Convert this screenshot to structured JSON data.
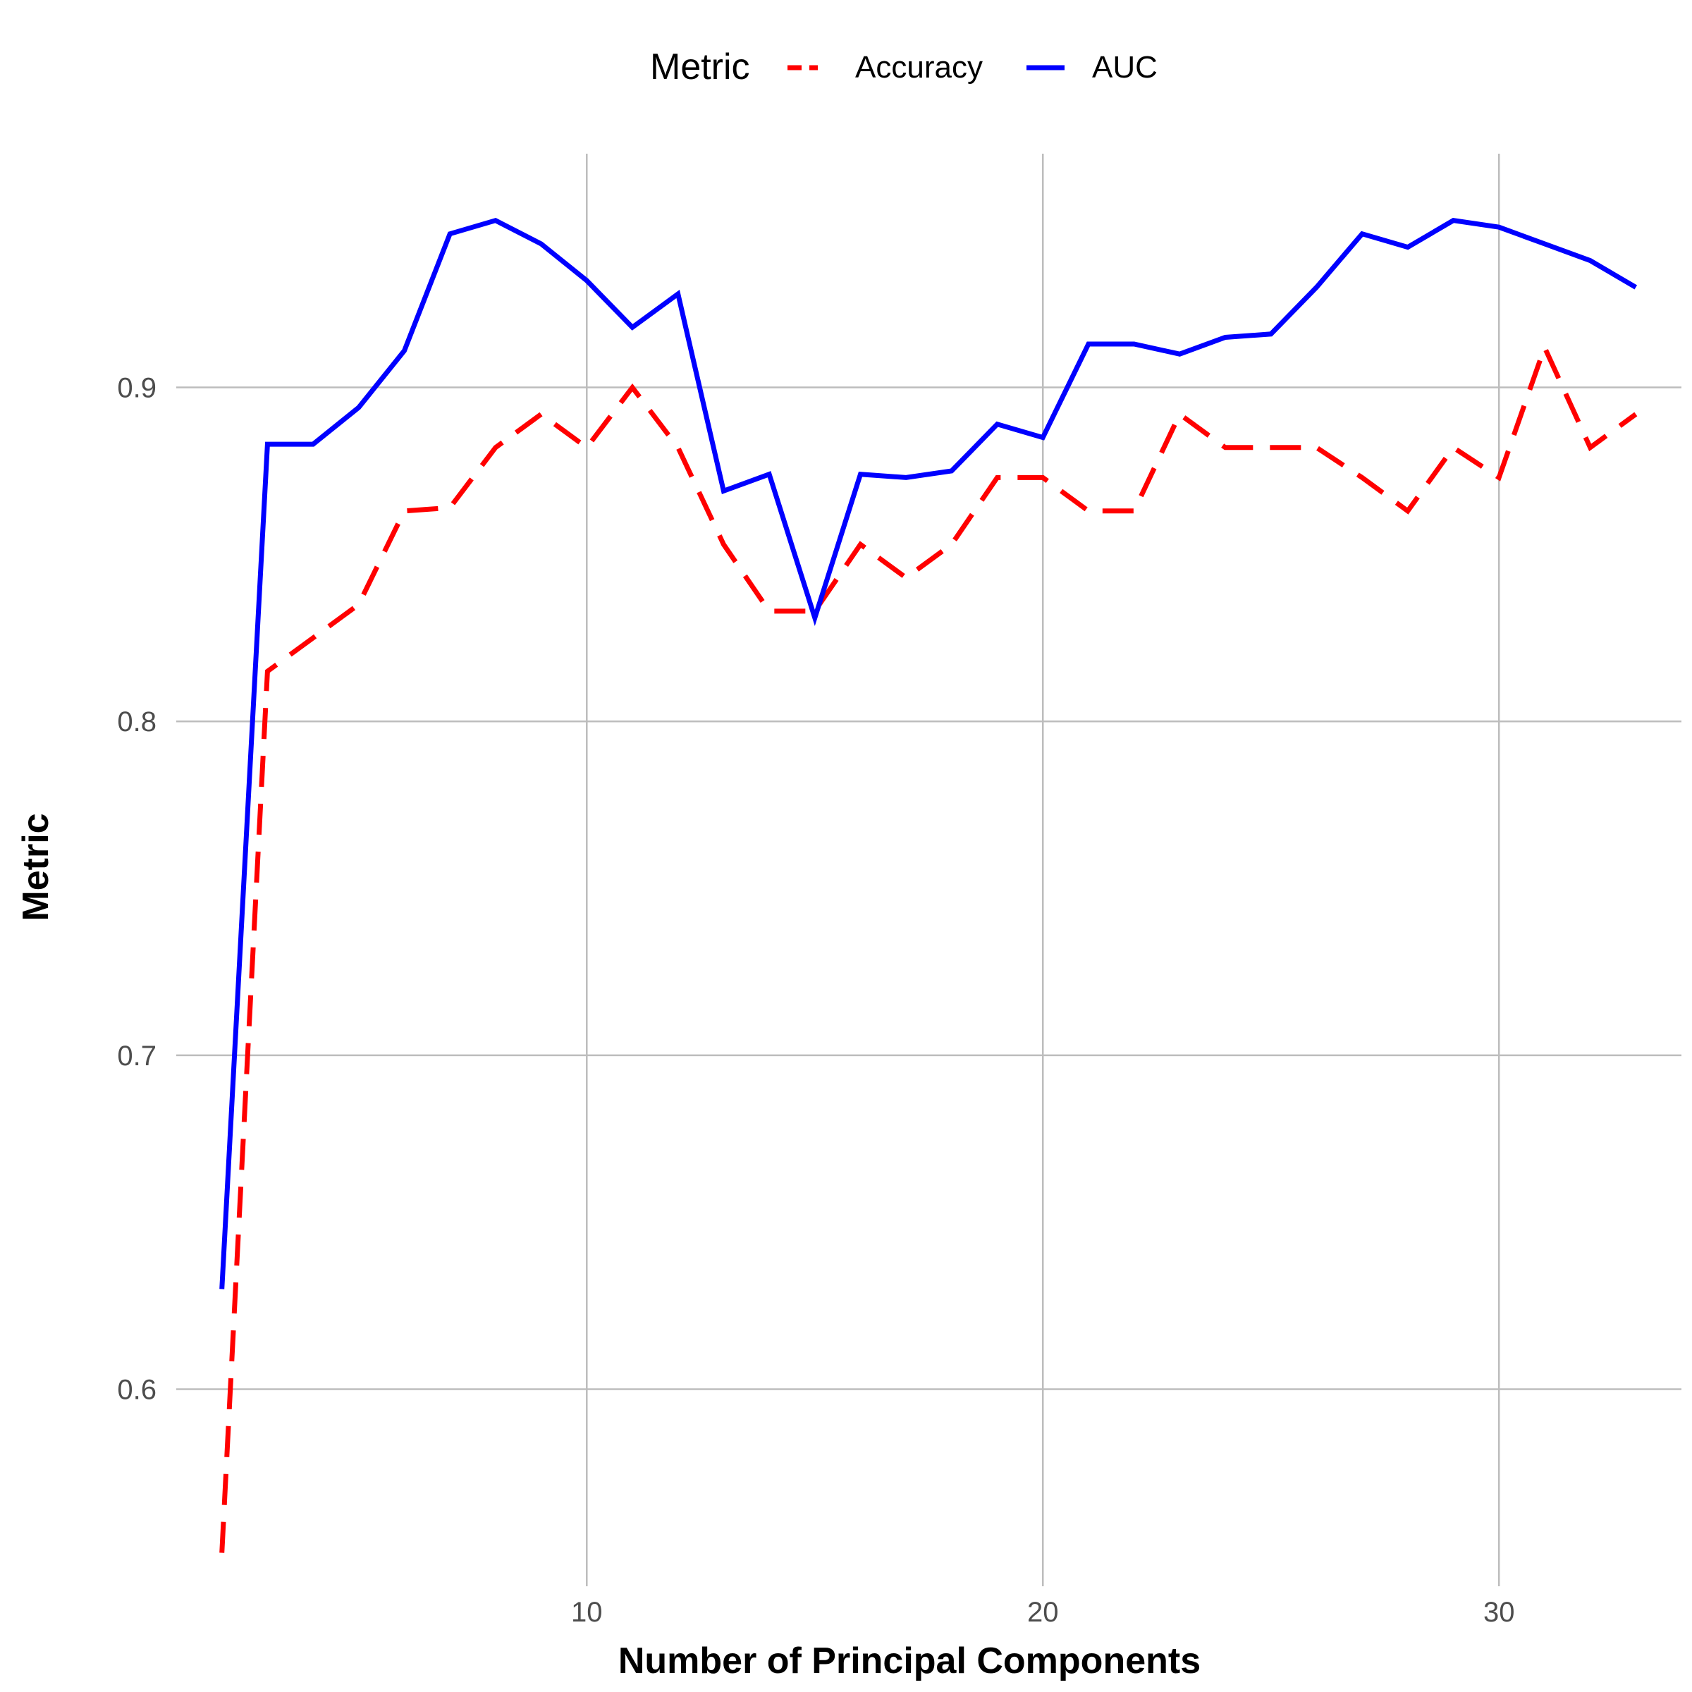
{
  "chart_data": {
    "type": "line",
    "title": "",
    "xlabel": "Number of Principal Components",
    "ylabel": "Metric",
    "legend": {
      "title": "Metric",
      "position": "top",
      "entries": [
        "Accuracy",
        "AUC"
      ]
    },
    "grid": true,
    "xlim": [
      1,
      34
    ],
    "ylim": [
      0.541,
      0.97
    ],
    "x_ticks": [
      10,
      20,
      30
    ],
    "y_ticks": [
      0.6,
      0.7,
      0.8,
      0.9
    ],
    "x_tick_labels": [
      "10",
      "20",
      "30"
    ],
    "y_tick_labels": [
      "0.6",
      "0.7",
      "0.8",
      "0.9"
    ],
    "x": [
      2,
      3,
      4,
      5,
      6,
      7,
      8,
      9,
      10,
      11,
      12,
      13,
      14,
      15,
      16,
      17,
      18,
      19,
      20,
      21,
      22,
      23,
      24,
      25,
      26,
      27,
      28,
      29,
      30,
      31,
      32,
      33
    ],
    "series": [
      {
        "name": "Accuracy",
        "color": "#ff0000",
        "style": "dashed",
        "values": [
          0.551,
          0.815,
          0.825,
          0.835,
          0.863,
          0.864,
          0.882,
          0.892,
          0.882,
          0.9,
          0.882,
          0.853,
          0.833,
          0.833,
          0.853,
          0.843,
          0.853,
          0.873,
          0.873,
          0.863,
          0.863,
          0.892,
          0.882,
          0.882,
          0.882,
          0.873,
          0.863,
          0.882,
          0.873,
          0.912,
          0.882,
          0.892
        ]
      },
      {
        "name": "AUC",
        "color": "#0000ff",
        "style": "solid",
        "values": [
          0.63,
          0.883,
          0.883,
          0.894,
          0.911,
          0.946,
          0.95,
          0.943,
          0.932,
          0.918,
          0.928,
          0.869,
          0.874,
          0.831,
          0.874,
          0.873,
          0.875,
          0.889,
          0.885,
          0.913,
          0.913,
          0.91,
          0.915,
          0.916,
          0.93,
          0.946,
          0.942,
          0.95,
          0.948,
          0.943,
          0.938,
          0.93
        ]
      }
    ]
  }
}
